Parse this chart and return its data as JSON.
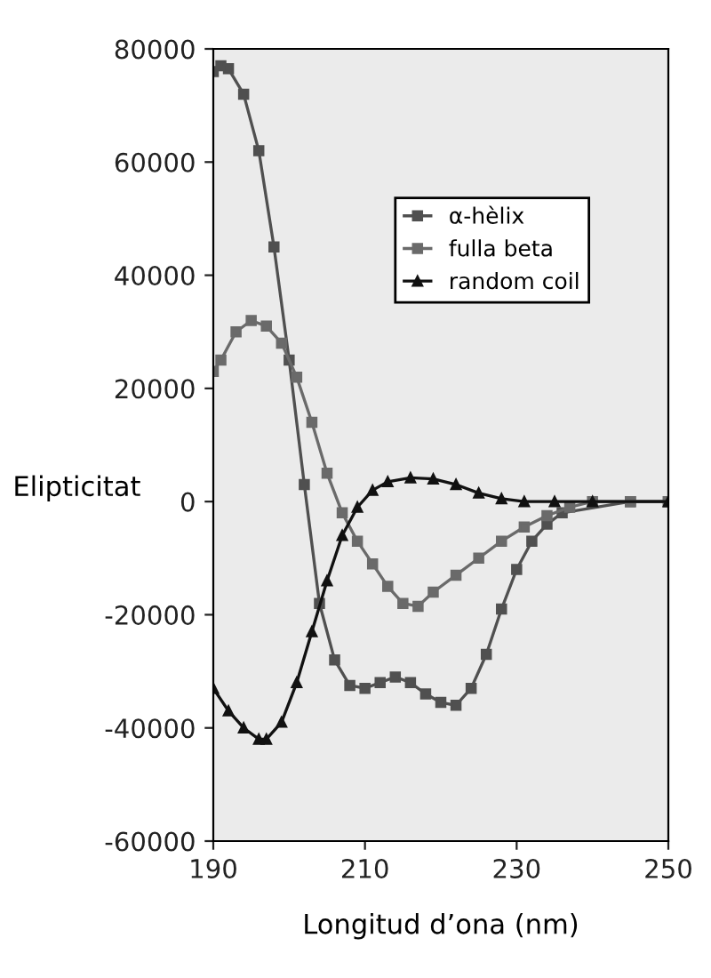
{
  "chart_data": {
    "type": "line",
    "xlabel": "Longitud d’ona (nm)",
    "ylabel": "Elipticitat",
    "xlim": [
      190,
      250
    ],
    "ylim": [
      -60000,
      80000
    ],
    "xticks": [
      190,
      210,
      230,
      250
    ],
    "yticks": [
      -60000,
      -40000,
      -20000,
      0,
      20000,
      40000,
      60000,
      80000
    ],
    "grid": false,
    "legend": "top right",
    "line_style": "solid",
    "series": [
      {
        "name": "α-hèlix",
        "color": "#505050",
        "marker": "square",
        "x": [
          190,
          191,
          192,
          194,
          196,
          198,
          200,
          202,
          204,
          206,
          208,
          210,
          212,
          214,
          216,
          218,
          220,
          222,
          224,
          226,
          228,
          230,
          232,
          234,
          236,
          245,
          250
        ],
        "values": [
          76000,
          77000,
          76500,
          72000,
          62000,
          45000,
          25000,
          3000,
          -18000,
          -28000,
          -32500,
          -33000,
          -32000,
          -31000,
          -32000,
          -34000,
          -35500,
          -36000,
          -33000,
          -27000,
          -19000,
          -12000,
          -7000,
          -4000,
          -2000,
          0,
          0
        ]
      },
      {
        "name": "fulla beta",
        "color": "#6a6a6a",
        "marker": "square",
        "x": [
          190,
          191,
          193,
          195,
          197,
          199,
          201,
          203,
          205,
          207,
          209,
          211,
          213,
          215,
          217,
          219,
          222,
          225,
          228,
          231,
          234,
          237,
          240,
          245,
          250
        ],
        "values": [
          23000,
          25000,
          30000,
          32000,
          31000,
          28000,
          22000,
          14000,
          5000,
          -2000,
          -7000,
          -11000,
          -15000,
          -18000,
          -18500,
          -16000,
          -13000,
          -10000,
          -7000,
          -4500,
          -2500,
          -1000,
          0,
          0,
          0
        ]
      },
      {
        "name": "random coil",
        "color": "#111111",
        "marker": "triangle",
        "x": [
          190,
          192,
          194,
          196,
          197,
          199,
          201,
          203,
          205,
          207,
          209,
          211,
          213,
          216,
          219,
          222,
          225,
          228,
          231,
          235,
          240,
          250
        ],
        "values": [
          -33000,
          -37000,
          -40000,
          -42000,
          -42000,
          -39000,
          -32000,
          -23000,
          -14000,
          -6000,
          -1000,
          2000,
          3500,
          4200,
          4000,
          3000,
          1500,
          500,
          0,
          0,
          0,
          0
        ]
      }
    ]
  }
}
